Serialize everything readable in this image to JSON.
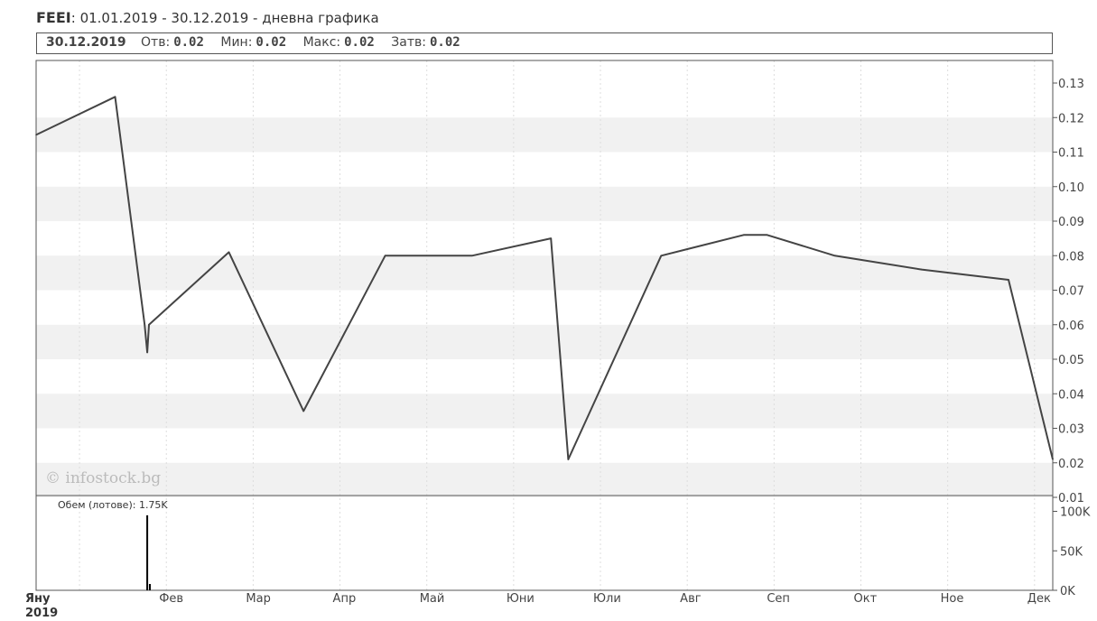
{
  "header": {
    "ticker": "FEEI",
    "period": ": 01.01.2019 - 30.12.2019 - дневна графика"
  },
  "infobar": {
    "date": "30.12.2019",
    "open_label": "Отв:",
    "open_value": "0.02",
    "min_label": "Мин:",
    "min_value": "0.02",
    "max_label": "Макс:",
    "max_value": "0.02",
    "close_label": "Затв:",
    "close_value": "0.02"
  },
  "watermark": "© infostock.bg",
  "volume_label": "Обем (лотове): 1.75K",
  "year_label": "2019",
  "chart_data": {
    "type": "line",
    "x": [
      0,
      0.91,
      1.25,
      1.28,
      1.3,
      2.22,
      3.08,
      4.02,
      5.02,
      5.93,
      6.13,
      7.2,
      8.15,
      8.42,
      9.2,
      10.2,
      11.2,
      11.71
    ],
    "values": [
      0.115,
      0.126,
      0.06,
      0.052,
      0.06,
      0.081,
      0.035,
      0.08,
      0.08,
      0.085,
      0.021,
      0.08,
      0.086,
      0.086,
      0.08,
      0.076,
      0.073,
      0.021
    ],
    "ylim": [
      0.01,
      0.13
    ],
    "yticks": [
      "0.13",
      "0.12",
      "0.11",
      "0.10",
      "0.09",
      "0.08",
      "0.07",
      "0.06",
      "0.05",
      "0.04",
      "0.03",
      "0.02",
      "0.01"
    ],
    "xlim": [
      0,
      11.71
    ],
    "month_labels": [
      "Яну",
      "Фев",
      "Мар",
      "Апр",
      "Май",
      "Юни",
      "Юли",
      "Авг",
      "Сеп",
      "Окт",
      "Ное",
      "Дек"
    ],
    "line_color": "#444444",
    "volume": {
      "x": [
        1.28,
        1.31
      ],
      "values": [
        95,
        8
      ],
      "ylim": [
        0,
        120
      ],
      "yticks": [
        "100K",
        "50K",
        "0K"
      ],
      "bar_color": "#000000"
    }
  }
}
